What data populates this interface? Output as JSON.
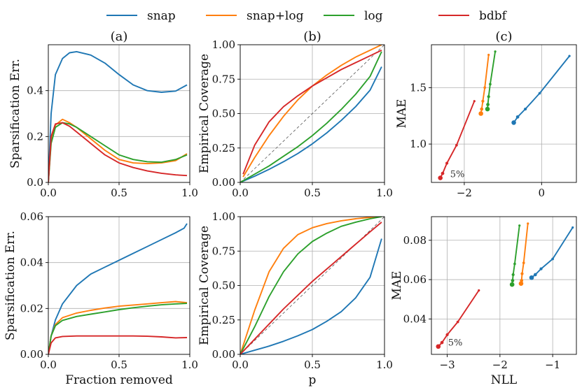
{
  "colors": {
    "snap": "#1f77b4",
    "snap+log": "#ff7f0e",
    "log": "#2ca02c",
    "bdbf": "#d62728"
  },
  "legend": [
    "snap",
    "snap+log",
    "log",
    "bdbf"
  ],
  "chart_data": [
    {
      "id": "a-top",
      "type": "line",
      "title": "(a)",
      "xlabel": "",
      "ylabel": "Sparsification Err.",
      "xlim": [
        0,
        1
      ],
      "ylim": [
        0,
        0.6
      ],
      "xticks": [
        0,
        0.5,
        1
      ],
      "xtick_labels": [
        "0.0",
        "0.5",
        "1.0"
      ],
      "yticks": [
        0,
        0.2,
        0.4
      ],
      "ytick_labels": [
        "0.0",
        "0.2",
        "0.4"
      ],
      "series": [
        {
          "name": "snap",
          "x": [
            0,
            0.02,
            0.05,
            0.1,
            0.15,
            0.2,
            0.3,
            0.4,
            0.5,
            0.6,
            0.7,
            0.8,
            0.9,
            0.98
          ],
          "y": [
            0,
            0.3,
            0.47,
            0.54,
            0.565,
            0.57,
            0.555,
            0.52,
            0.47,
            0.425,
            0.4,
            0.393,
            0.398,
            0.425
          ]
        },
        {
          "name": "snap+log",
          "x": [
            0,
            0.02,
            0.05,
            0.1,
            0.15,
            0.2,
            0.3,
            0.4,
            0.5,
            0.6,
            0.7,
            0.8,
            0.9,
            0.98
          ],
          "y": [
            0,
            0.18,
            0.25,
            0.275,
            0.26,
            0.24,
            0.19,
            0.14,
            0.1,
            0.085,
            0.082,
            0.085,
            0.095,
            0.125
          ]
        },
        {
          "name": "log",
          "x": [
            0,
            0.02,
            0.05,
            0.1,
            0.15,
            0.2,
            0.3,
            0.4,
            0.5,
            0.6,
            0.7,
            0.8,
            0.9,
            0.98
          ],
          "y": [
            0,
            0.17,
            0.24,
            0.26,
            0.255,
            0.24,
            0.2,
            0.16,
            0.12,
            0.1,
            0.09,
            0.088,
            0.1,
            0.12
          ]
        },
        {
          "name": "bdbf",
          "x": [
            0,
            0.02,
            0.05,
            0.1,
            0.15,
            0.2,
            0.3,
            0.4,
            0.5,
            0.6,
            0.7,
            0.8,
            0.9,
            0.98
          ],
          "y": [
            0,
            0.2,
            0.255,
            0.26,
            0.245,
            0.22,
            0.17,
            0.12,
            0.085,
            0.065,
            0.05,
            0.04,
            0.033,
            0.03
          ]
        }
      ]
    },
    {
      "id": "b-top",
      "type": "line",
      "title": "(b)",
      "xlabel": "",
      "ylabel": "Empirical Coverage",
      "xlim": [
        0,
        1
      ],
      "ylim": [
        0,
        1
      ],
      "xticks": [
        0,
        0.5,
        1
      ],
      "xtick_labels": [
        "0.0",
        "0.5",
        "1.0"
      ],
      "yticks": [
        0,
        0.25,
        0.5,
        0.75,
        1
      ],
      "ytick_labels": [
        "0.00",
        "0.25",
        "0.50",
        "0.75",
        "1.00"
      ],
      "diagonal": true,
      "series": [
        {
          "name": "snap",
          "x": [
            0,
            0.1,
            0.2,
            0.3,
            0.4,
            0.5,
            0.6,
            0.7,
            0.8,
            0.9,
            0.98
          ],
          "y": [
            0,
            0.045,
            0.095,
            0.15,
            0.21,
            0.28,
            0.36,
            0.45,
            0.55,
            0.67,
            0.84
          ]
        },
        {
          "name": "snap+log",
          "x": [
            0.02,
            0.1,
            0.2,
            0.3,
            0.4,
            0.5,
            0.6,
            0.7,
            0.8,
            0.9,
            0.98
          ],
          "y": [
            0.04,
            0.18,
            0.34,
            0.48,
            0.6,
            0.7,
            0.78,
            0.85,
            0.91,
            0.96,
            1.0
          ]
        },
        {
          "name": "log",
          "x": [
            0,
            0.1,
            0.2,
            0.3,
            0.4,
            0.5,
            0.6,
            0.7,
            0.8,
            0.9,
            0.98
          ],
          "y": [
            0,
            0.06,
            0.12,
            0.19,
            0.26,
            0.34,
            0.43,
            0.53,
            0.64,
            0.77,
            0.95
          ]
        },
        {
          "name": "bdbf",
          "x": [
            0.02,
            0.1,
            0.2,
            0.3,
            0.4,
            0.5,
            0.6,
            0.7,
            0.8,
            0.9,
            0.98
          ],
          "y": [
            0.06,
            0.27,
            0.44,
            0.55,
            0.63,
            0.7,
            0.76,
            0.82,
            0.87,
            0.92,
            0.96
          ]
        }
      ]
    },
    {
      "id": "c-top",
      "type": "line",
      "title": "(c)",
      "xlabel": "",
      "ylabel": "MAE",
      "xlim": [
        -2.85,
        0.9
      ],
      "ylim": [
        0.66,
        1.88
      ],
      "xticks": [
        -2,
        0
      ],
      "xtick_labels": [
        "−2",
        "0"
      ],
      "yticks": [
        1.0,
        1.5
      ],
      "ytick_labels": [
        "1.0",
        "1.5"
      ],
      "annotation": "5%",
      "series": [
        {
          "name": "snap",
          "markers": true,
          "x": [
            -0.72,
            -0.62,
            -0.42,
            -0.05,
            0.72
          ],
          "y": [
            1.19,
            1.24,
            1.31,
            1.45,
            1.78
          ]
        },
        {
          "name": "snap+log",
          "markers": true,
          "x": [
            -1.57,
            -1.55,
            -1.52,
            -1.47,
            -1.37
          ],
          "y": [
            1.27,
            1.31,
            1.38,
            1.5,
            1.79
          ]
        },
        {
          "name": "log",
          "markers": true,
          "x": [
            -1.4,
            -1.39,
            -1.37,
            -1.33,
            -1.2
          ],
          "y": [
            1.31,
            1.35,
            1.42,
            1.53,
            1.82
          ]
        },
        {
          "name": "bdbf",
          "markers": true,
          "x": [
            -2.62,
            -2.56,
            -2.45,
            -2.2,
            -1.74
          ],
          "y": [
            0.7,
            0.74,
            0.83,
            0.99,
            1.38
          ]
        }
      ]
    },
    {
      "id": "a-bottom",
      "type": "line",
      "title": "",
      "xlabel": "Fraction removed",
      "ylabel": "Sparsification Err.",
      "xlim": [
        0,
        1
      ],
      "ylim": [
        0,
        0.06
      ],
      "xticks": [
        0,
        0.5,
        1
      ],
      "xtick_labels": [
        "0.0",
        "0.5",
        "1.0"
      ],
      "yticks": [
        0,
        0.02,
        0.04,
        0.06
      ],
      "ytick_labels": [
        "0.00",
        "0.02",
        "0.04",
        "0.06"
      ],
      "series": [
        {
          "name": "snap",
          "x": [
            0,
            0.02,
            0.05,
            0.1,
            0.2,
            0.3,
            0.4,
            0.5,
            0.6,
            0.7,
            0.8,
            0.9,
            0.96,
            0.98
          ],
          "y": [
            0,
            0.008,
            0.015,
            0.022,
            0.03,
            0.035,
            0.038,
            0.041,
            0.044,
            0.047,
            0.05,
            0.053,
            0.055,
            0.057
          ]
        },
        {
          "name": "snap+log",
          "x": [
            0,
            0.02,
            0.05,
            0.1,
            0.2,
            0.3,
            0.4,
            0.5,
            0.6,
            0.7,
            0.8,
            0.9,
            0.98
          ],
          "y": [
            0,
            0.008,
            0.013,
            0.016,
            0.018,
            0.0192,
            0.0202,
            0.021,
            0.0215,
            0.022,
            0.0225,
            0.023,
            0.0225
          ]
        },
        {
          "name": "log",
          "x": [
            0,
            0.02,
            0.05,
            0.1,
            0.2,
            0.3,
            0.4,
            0.5,
            0.6,
            0.7,
            0.8,
            0.9,
            0.98
          ],
          "y": [
            0,
            0.008,
            0.0125,
            0.0148,
            0.0165,
            0.0175,
            0.0185,
            0.0195,
            0.0203,
            0.021,
            0.0216,
            0.022,
            0.0222
          ]
        },
        {
          "name": "bdbf",
          "x": [
            0,
            0.02,
            0.05,
            0.1,
            0.2,
            0.3,
            0.4,
            0.5,
            0.6,
            0.7,
            0.8,
            0.9,
            0.98
          ],
          "y": [
            0,
            0.005,
            0.0072,
            0.0078,
            0.008,
            0.008,
            0.008,
            0.008,
            0.008,
            0.0079,
            0.0076,
            0.0072,
            0.0073
          ]
        }
      ]
    },
    {
      "id": "b-bottom",
      "type": "line",
      "title": "",
      "xlabel": "p",
      "ylabel": "Empirical Coverage",
      "xlim": [
        0,
        1
      ],
      "ylim": [
        0,
        1
      ],
      "xticks": [
        0,
        0.5,
        1
      ],
      "xtick_labels": [
        "0.0",
        "0.5",
        "1.0"
      ],
      "yticks": [
        0,
        0.25,
        0.5,
        0.75,
        1
      ],
      "ytick_labels": [
        "0.00",
        "0.25",
        "0.50",
        "0.75",
        "1.00"
      ],
      "diagonal": true,
      "series": [
        {
          "name": "snap",
          "x": [
            0,
            0.1,
            0.2,
            0.3,
            0.4,
            0.5,
            0.6,
            0.7,
            0.8,
            0.9,
            0.98
          ],
          "y": [
            0,
            0.03,
            0.06,
            0.095,
            0.135,
            0.18,
            0.24,
            0.31,
            0.41,
            0.56,
            0.84
          ]
        },
        {
          "name": "snap+log",
          "x": [
            0,
            0.1,
            0.2,
            0.3,
            0.4,
            0.5,
            0.6,
            0.7,
            0.8,
            0.9,
            0.98
          ],
          "y": [
            0,
            0.32,
            0.6,
            0.77,
            0.87,
            0.92,
            0.95,
            0.97,
            0.985,
            0.995,
            1.0
          ]
        },
        {
          "name": "log",
          "x": [
            0,
            0.1,
            0.2,
            0.3,
            0.4,
            0.5,
            0.6,
            0.7,
            0.8,
            0.9,
            0.98
          ],
          "y": [
            0,
            0.2,
            0.42,
            0.6,
            0.73,
            0.82,
            0.88,
            0.93,
            0.96,
            0.985,
            1.0
          ]
        },
        {
          "name": "bdbf",
          "x": [
            0,
            0.1,
            0.2,
            0.3,
            0.4,
            0.5,
            0.6,
            0.7,
            0.8,
            0.9,
            0.98
          ],
          "y": [
            0,
            0.11,
            0.22,
            0.33,
            0.43,
            0.53,
            0.62,
            0.71,
            0.8,
            0.89,
            0.96
          ]
        }
      ]
    },
    {
      "id": "c-bottom",
      "type": "line",
      "title": "",
      "xlabel": "NLL",
      "ylabel": "MAE",
      "xlim": [
        -3.3,
        -0.55
      ],
      "ylim": [
        0.022,
        0.092
      ],
      "xticks": [
        -3,
        -2,
        -1
      ],
      "xtick_labels": [
        "−3",
        "−2",
        "−1"
      ],
      "yticks": [
        0.04,
        0.06,
        0.08
      ],
      "ytick_labels": [
        "0.04",
        "0.06",
        "0.08"
      ],
      "annotation": "5%",
      "series": [
        {
          "name": "snap",
          "markers": true,
          "x": [
            -1.4,
            -1.33,
            -1.22,
            -1.0,
            -0.62
          ],
          "y": [
            0.061,
            0.0625,
            0.0655,
            0.0705,
            0.0865
          ]
        },
        {
          "name": "snap+log",
          "markers": true,
          "x": [
            -1.6,
            -1.59,
            -1.58,
            -1.55,
            -1.47
          ],
          "y": [
            0.058,
            0.0595,
            0.063,
            0.0685,
            0.0885
          ]
        },
        {
          "name": "log",
          "markers": true,
          "x": [
            -1.77,
            -1.76,
            -1.75,
            -1.72,
            -1.63
          ],
          "y": [
            0.0575,
            0.0595,
            0.0625,
            0.068,
            0.0875
          ]
        },
        {
          "name": "bdbf",
          "markers": true,
          "x": [
            -3.17,
            -3.1,
            -3.0,
            -2.8,
            -2.4
          ],
          "y": [
            0.026,
            0.028,
            0.032,
            0.0385,
            0.0545
          ]
        }
      ]
    }
  ]
}
